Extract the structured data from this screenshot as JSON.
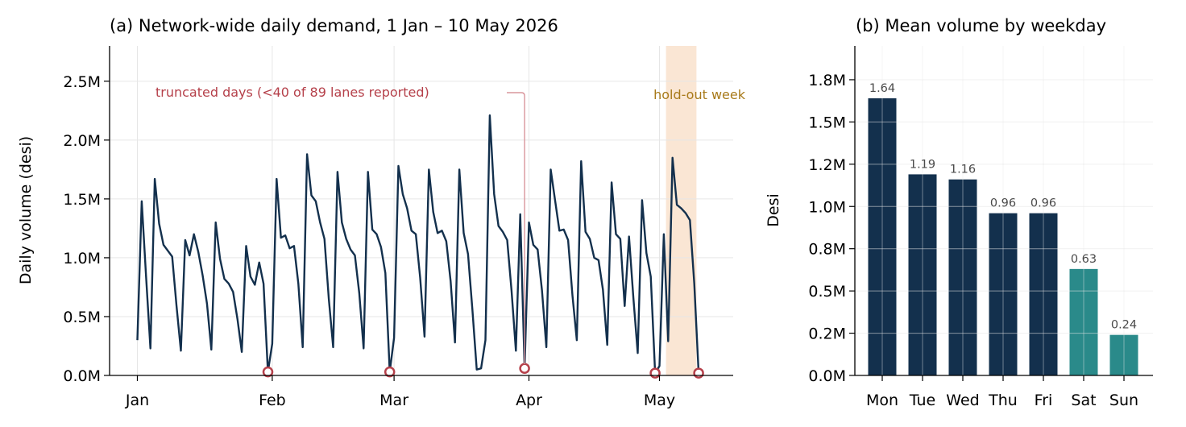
{
  "chart_data": [
    {
      "type": "line",
      "title": "(a) Network-wide daily demand, 1 Jan – 10 May 2026",
      "xlabel": "",
      "ylabel": "Daily volume (desi)",
      "ylim": [
        0,
        2800000
      ],
      "x_start": "2026-01-01",
      "x_end": "2026-05-10",
      "x_ticks": [
        {
          "date": "2026-01-01",
          "label": "Jan"
        },
        {
          "date": "2026-02-01",
          "label": "Feb"
        },
        {
          "date": "2026-03-01",
          "label": "Mar"
        },
        {
          "date": "2026-04-01",
          "label": "Apr"
        },
        {
          "date": "2026-05-01",
          "label": "May"
        }
      ],
      "y_ticks": [
        {
          "value": 0,
          "label": "0.0M"
        },
        {
          "value": 500000,
          "label": "0.5M"
        },
        {
          "value": 1000000,
          "label": "1.0M"
        },
        {
          "value": 1500000,
          "label": "1.5M"
        },
        {
          "value": 2000000,
          "label": "2.0M"
        },
        {
          "value": 2500000,
          "label": "2.5M"
        }
      ],
      "grid": true,
      "line_color": "#13304d",
      "marker_color": "#b5404a",
      "holdout_color": "#fae6d4",
      "holdout_label_color": "#a87a1a",
      "series": [
        {
          "values": [
            300000,
            1480000,
            840000,
            230000,
            1670000,
            1290000,
            1110000,
            1060000,
            1010000,
            590000,
            210000,
            1150000,
            1020000,
            1200000,
            1050000,
            850000,
            610000,
            220000,
            1300000,
            990000,
            820000,
            780000,
            710000,
            480000,
            200000,
            1100000,
            840000,
            770000,
            960000,
            780000,
            30000,
            270000,
            1670000,
            1170000,
            1190000,
            1080000,
            1100000,
            780000,
            240000,
            1880000,
            1530000,
            1480000,
            1300000,
            1160000,
            650000,
            240000,
            1730000,
            1300000,
            1160000,
            1070000,
            1020000,
            700000,
            230000,
            1730000,
            1240000,
            1200000,
            1090000,
            870000,
            30000,
            320000,
            1780000,
            1540000,
            1420000,
            1230000,
            1200000,
            830000,
            330000,
            1750000,
            1390000,
            1210000,
            1230000,
            1140000,
            800000,
            280000,
            1750000,
            1210000,
            1030000,
            560000,
            50000,
            60000,
            300000,
            2210000,
            1540000,
            1270000,
            1220000,
            1150000,
            720000,
            210000,
            1370000,
            60000,
            1300000,
            1110000,
            1070000,
            720000,
            240000,
            1750000,
            1490000,
            1230000,
            1240000,
            1150000,
            680000,
            300000,
            1820000,
            1220000,
            1160000,
            1000000,
            980000,
            730000,
            260000,
            1640000,
            1200000,
            1160000,
            590000,
            1180000,
            660000,
            190000,
            1490000,
            1040000,
            840000,
            20000,
            80000,
            1200000,
            290000,
            1850000,
            1450000,
            1420000,
            1380000,
            1320000,
            780000,
            20000
          ]
        }
      ],
      "truncated_days": [
        {
          "date": "2026-01-31",
          "value": 30000
        },
        {
          "date": "2026-02-28",
          "value": 30000
        },
        {
          "date": "2026-03-31",
          "value": 60000
        },
        {
          "date": "2026-04-30",
          "value": 20000
        },
        {
          "date": "2026-05-10",
          "value": 20000
        }
      ],
      "holdout": {
        "start": "2026-05-03",
        "end": "2026-05-09",
        "label": "hold-out week"
      },
      "annotation": {
        "text": "truncated days (<40 of 89 lanes reported)",
        "target_date": "2026-03-31"
      }
    },
    {
      "type": "bar",
      "title": "(b) Mean volume by weekday",
      "xlabel": "",
      "ylabel": "Desi",
      "ylim": [
        0,
        1950000
      ],
      "categories": [
        "Mon",
        "Tue",
        "Wed",
        "Thu",
        "Fri",
        "Sat",
        "Sun"
      ],
      "values": [
        1640000,
        1190000,
        1160000,
        960000,
        960000,
        630000,
        240000
      ],
      "bar_labels": [
        "1.64",
        "1.19",
        "1.16",
        "0.96",
        "0.96",
        "0.63",
        "0.24"
      ],
      "bar_colors": [
        "#13304d",
        "#13304d",
        "#13304d",
        "#13304d",
        "#13304d",
        "#2a8a8a",
        "#2a8a8a"
      ],
      "y_ticks": [
        {
          "value": 0,
          "label": "0.0M"
        },
        {
          "value": 250000,
          "label": "0.2M"
        },
        {
          "value": 500000,
          "label": "0.5M"
        },
        {
          "value": 750000,
          "label": "0.8M"
        },
        {
          "value": 1000000,
          "label": "1.0M"
        },
        {
          "value": 1250000,
          "label": "1.2M"
        },
        {
          "value": 1500000,
          "label": "1.5M"
        },
        {
          "value": 1750000,
          "label": "1.8M"
        }
      ],
      "grid": true
    }
  ]
}
